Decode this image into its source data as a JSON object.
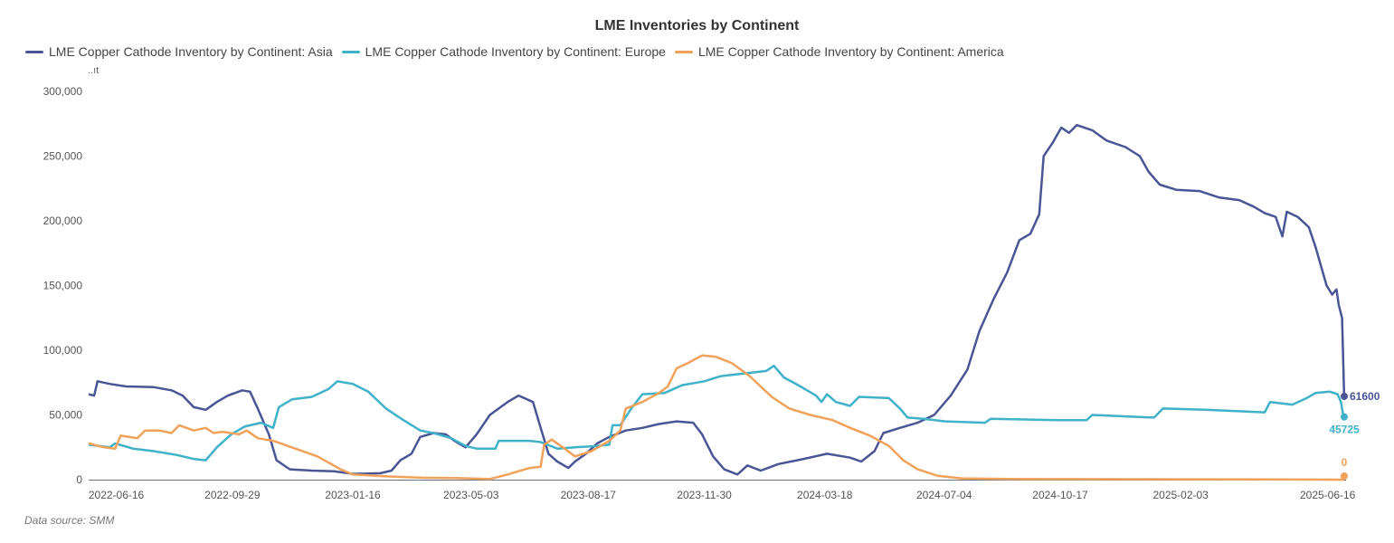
{
  "chart_data": {
    "type": "line",
    "title": "LME Inventories by Continent",
    "ylabel": "..ıt",
    "xlabel": "",
    "ylim": [
      0,
      300000
    ],
    "yticks": [
      0,
      50000,
      100000,
      150000,
      200000,
      250000,
      300000
    ],
    "ytick_labels": [
      "0",
      "50,000",
      "100,000",
      "150,000",
      "200,000",
      "250,000",
      "300,000"
    ],
    "xlim": [
      "2022-05-22",
      "2025-07-01"
    ],
    "xticks": [
      "2022-06-16",
      "2022-09-29",
      "2023-01-16",
      "2023-05-03",
      "2023-08-17",
      "2023-11-30",
      "2024-03-18",
      "2024-07-04",
      "2024-10-17",
      "2025-02-03",
      "2025-06-16"
    ],
    "grid": false,
    "legend": "top-left",
    "series": [
      {
        "name": "LME Copper Cathode Inventory by Continent: Asia",
        "color": "#4a5596",
        "end_label": "61600",
        "points": [
          [
            "2022-05-22",
            66000
          ],
          [
            "2022-05-27",
            65000
          ],
          [
            "2022-05-30",
            76000
          ],
          [
            "2022-06-10",
            74000
          ],
          [
            "2022-06-25",
            72000
          ],
          [
            "2022-07-20",
            71500
          ],
          [
            "2022-08-05",
            69000
          ],
          [
            "2022-08-15",
            65000
          ],
          [
            "2022-08-25",
            56000
          ],
          [
            "2022-09-05",
            54000
          ],
          [
            "2022-09-15",
            60000
          ],
          [
            "2022-09-25",
            65000
          ],
          [
            "2022-10-08",
            69000
          ],
          [
            "2022-10-15",
            68000
          ],
          [
            "2022-10-22",
            55000
          ],
          [
            "2022-11-01",
            35000
          ],
          [
            "2022-11-08",
            15000
          ],
          [
            "2022-11-20",
            8000
          ],
          [
            "2022-12-10",
            7000
          ],
          [
            "2022-12-30",
            6500
          ],
          [
            "2023-01-16",
            4500
          ],
          [
            "2023-02-10",
            5000
          ],
          [
            "2023-02-20",
            7000
          ],
          [
            "2023-02-28",
            15000
          ],
          [
            "2023-03-10",
            20000
          ],
          [
            "2023-03-18",
            33000
          ],
          [
            "2023-03-30",
            36000
          ],
          [
            "2023-04-10",
            35000
          ],
          [
            "2023-04-18",
            30000
          ],
          [
            "2023-04-28",
            25000
          ],
          [
            "2023-05-08",
            35000
          ],
          [
            "2023-05-20",
            50000
          ],
          [
            "2023-06-05",
            60000
          ],
          [
            "2023-06-15",
            65000
          ],
          [
            "2023-06-28",
            60000
          ],
          [
            "2023-07-05",
            40000
          ],
          [
            "2023-07-12",
            20000
          ],
          [
            "2023-07-20",
            14000
          ],
          [
            "2023-07-30",
            9000
          ],
          [
            "2023-08-05",
            14000
          ],
          [
            "2023-08-15",
            20000
          ],
          [
            "2023-08-25",
            28000
          ],
          [
            "2023-09-05",
            33000
          ],
          [
            "2023-09-20",
            38000
          ],
          [
            "2023-10-05",
            40000
          ],
          [
            "2023-10-20",
            43000
          ],
          [
            "2023-11-05",
            45000
          ],
          [
            "2023-11-20",
            44000
          ],
          [
            "2023-11-28",
            35000
          ],
          [
            "2023-12-08",
            18000
          ],
          [
            "2023-12-18",
            8000
          ],
          [
            "2023-12-30",
            4000
          ],
          [
            "2024-01-08",
            11000
          ],
          [
            "2024-01-20",
            7000
          ],
          [
            "2024-02-05",
            12000
          ],
          [
            "2024-02-28",
            16000
          ],
          [
            "2024-03-20",
            20000
          ],
          [
            "2024-04-10",
            17000
          ],
          [
            "2024-04-20",
            14000
          ],
          [
            "2024-05-02",
            22000
          ],
          [
            "2024-05-10",
            36000
          ],
          [
            "2024-05-25",
            40000
          ],
          [
            "2024-06-10",
            44000
          ],
          [
            "2024-06-25",
            50000
          ],
          [
            "2024-07-10",
            65000
          ],
          [
            "2024-07-25",
            85000
          ],
          [
            "2024-08-05",
            115000
          ],
          [
            "2024-08-18",
            140000
          ],
          [
            "2024-08-30",
            160000
          ],
          [
            "2024-09-10",
            185000
          ],
          [
            "2024-09-20",
            190000
          ],
          [
            "2024-09-28",
            205000
          ],
          [
            "2024-10-02",
            250000
          ],
          [
            "2024-10-10",
            260000
          ],
          [
            "2024-10-18",
            272000
          ],
          [
            "2024-10-25",
            268000
          ],
          [
            "2024-11-01",
            274000
          ],
          [
            "2024-11-15",
            270000
          ],
          [
            "2024-11-28",
            262000
          ],
          [
            "2024-12-15",
            257000
          ],
          [
            "2024-12-28",
            250000
          ],
          [
            "2025-01-05",
            238000
          ],
          [
            "2025-01-15",
            228000
          ],
          [
            "2025-01-30",
            224000
          ],
          [
            "2025-02-20",
            223000
          ],
          [
            "2025-03-10",
            218000
          ],
          [
            "2025-03-28",
            216000
          ],
          [
            "2025-04-10",
            211000
          ],
          [
            "2025-04-20",
            206000
          ],
          [
            "2025-04-30",
            203000
          ],
          [
            "2025-05-06",
            188000
          ],
          [
            "2025-05-10",
            207000
          ],
          [
            "2025-05-20",
            203000
          ],
          [
            "2025-05-30",
            195000
          ],
          [
            "2025-06-05",
            180000
          ],
          [
            "2025-06-10",
            165000
          ],
          [
            "2025-06-15",
            150000
          ],
          [
            "2025-06-20",
            143000
          ],
          [
            "2025-06-24",
            147000
          ],
          [
            "2025-06-26",
            135000
          ],
          [
            "2025-06-29",
            125000
          ],
          [
            "2025-07-01",
            61600
          ]
        ]
      },
      {
        "name": "LME Copper Cathode Inventory by Continent: Europe",
        "color": "#3fb1c8",
        "end_label": "45725",
        "points": [
          [
            "2022-05-22",
            27000
          ],
          [
            "2022-06-10",
            25000
          ],
          [
            "2022-06-15",
            28000
          ],
          [
            "2022-07-01",
            24000
          ],
          [
            "2022-07-20",
            22000
          ],
          [
            "2022-08-10",
            19000
          ],
          [
            "2022-08-25",
            16000
          ],
          [
            "2022-09-05",
            15000
          ],
          [
            "2022-09-15",
            25000
          ],
          [
            "2022-09-28",
            35000
          ],
          [
            "2022-10-10",
            41000
          ],
          [
            "2022-10-25",
            44000
          ],
          [
            "2022-11-05",
            40000
          ],
          [
            "2022-11-10",
            56000
          ],
          [
            "2022-11-22",
            62000
          ],
          [
            "2022-12-10",
            64000
          ],
          [
            "2022-12-25",
            70000
          ],
          [
            "2023-01-02",
            76000
          ],
          [
            "2023-01-16",
            74000
          ],
          [
            "2023-01-30",
            68000
          ],
          [
            "2023-02-15",
            55000
          ],
          [
            "2023-03-01",
            47000
          ],
          [
            "2023-03-18",
            38000
          ],
          [
            "2023-03-30",
            36000
          ],
          [
            "2023-04-15",
            32000
          ],
          [
            "2023-04-28",
            26000
          ],
          [
            "2023-05-08",
            24000
          ],
          [
            "2023-05-25",
            24000
          ],
          [
            "2023-05-28",
            30000
          ],
          [
            "2023-06-25",
            30000
          ],
          [
            "2023-07-05",
            29000
          ],
          [
            "2023-07-20",
            24000
          ],
          [
            "2023-08-05",
            25000
          ],
          [
            "2023-08-25",
            26000
          ],
          [
            "2023-09-05",
            27000
          ],
          [
            "2023-09-08",
            42000
          ],
          [
            "2023-09-15",
            42000
          ],
          [
            "2023-09-25",
            55000
          ],
          [
            "2023-10-05",
            66000
          ],
          [
            "2023-10-25",
            67000
          ],
          [
            "2023-11-10",
            73000
          ],
          [
            "2023-11-30",
            76000
          ],
          [
            "2023-12-15",
            80000
          ],
          [
            "2024-01-05",
            82000
          ],
          [
            "2024-01-25",
            84000
          ],
          [
            "2024-02-01",
            88000
          ],
          [
            "2024-02-10",
            79000
          ],
          [
            "2024-02-25",
            72000
          ],
          [
            "2024-03-10",
            65000
          ],
          [
            "2024-03-15",
            60000
          ],
          [
            "2024-03-20",
            66000
          ],
          [
            "2024-03-28",
            60000
          ],
          [
            "2024-04-10",
            57000
          ],
          [
            "2024-04-18",
            64000
          ],
          [
            "2024-05-15",
            63000
          ],
          [
            "2024-05-25",
            55000
          ],
          [
            "2024-06-01",
            48000
          ],
          [
            "2024-06-15",
            47000
          ],
          [
            "2024-07-05",
            45000
          ],
          [
            "2024-08-10",
            44000
          ],
          [
            "2024-08-15",
            47000
          ],
          [
            "2024-10-15",
            46000
          ],
          [
            "2024-11-10",
            46000
          ],
          [
            "2024-11-15",
            50000
          ],
          [
            "2025-01-10",
            48000
          ],
          [
            "2025-01-18",
            55000
          ],
          [
            "2025-02-25",
            54000
          ],
          [
            "2025-03-25",
            53000
          ],
          [
            "2025-04-20",
            52000
          ],
          [
            "2025-04-25",
            60000
          ],
          [
            "2025-05-15",
            58000
          ],
          [
            "2025-05-28",
            63000
          ],
          [
            "2025-06-05",
            67000
          ],
          [
            "2025-06-18",
            68000
          ],
          [
            "2025-06-25",
            66000
          ],
          [
            "2025-06-28",
            60000
          ],
          [
            "2025-07-01",
            45725
          ]
        ]
      },
      {
        "name": "LME Copper Cathode Inventory by Continent: America",
        "color": "#f0a15a",
        "end_label": "0",
        "points": [
          [
            "2022-05-22",
            28000
          ],
          [
            "2022-06-05",
            25000
          ],
          [
            "2022-06-15",
            24000
          ],
          [
            "2022-06-20",
            34000
          ],
          [
            "2022-07-05",
            32000
          ],
          [
            "2022-07-12",
            38000
          ],
          [
            "2022-07-25",
            38000
          ],
          [
            "2022-08-05",
            36000
          ],
          [
            "2022-08-12",
            42000
          ],
          [
            "2022-08-25",
            38000
          ],
          [
            "2022-09-05",
            40000
          ],
          [
            "2022-09-12",
            36000
          ],
          [
            "2022-09-20",
            37000
          ],
          [
            "2022-10-05",
            35000
          ],
          [
            "2022-10-12",
            38000
          ],
          [
            "2022-10-22",
            32000
          ],
          [
            "2022-11-05",
            30000
          ],
          [
            "2022-11-25",
            24000
          ],
          [
            "2022-12-15",
            18000
          ],
          [
            "2023-01-05",
            8000
          ],
          [
            "2023-01-16",
            4000
          ],
          [
            "2023-02-15",
            2500
          ],
          [
            "2023-03-20",
            1500
          ],
          [
            "2023-04-20",
            1200
          ],
          [
            "2023-05-20",
            500
          ],
          [
            "2023-06-05",
            4000
          ],
          [
            "2023-06-25",
            9000
          ],
          [
            "2023-07-05",
            10000
          ],
          [
            "2023-07-08",
            27000
          ],
          [
            "2023-07-15",
            31000
          ],
          [
            "2023-07-25",
            25000
          ],
          [
            "2023-08-05",
            18000
          ],
          [
            "2023-08-20",
            22000
          ],
          [
            "2023-09-05",
            30000
          ],
          [
            "2023-09-15",
            38000
          ],
          [
            "2023-09-20",
            55000
          ],
          [
            "2023-10-05",
            60000
          ],
          [
            "2023-10-20",
            67000
          ],
          [
            "2023-10-28",
            72000
          ],
          [
            "2023-11-05",
            86000
          ],
          [
            "2023-11-15",
            90000
          ],
          [
            "2023-11-28",
            96000
          ],
          [
            "2023-12-10",
            95000
          ],
          [
            "2023-12-25",
            90000
          ],
          [
            "2024-01-10",
            80000
          ],
          [
            "2024-01-30",
            64000
          ],
          [
            "2024-02-15",
            55000
          ],
          [
            "2024-03-05",
            50000
          ],
          [
            "2024-03-25",
            46000
          ],
          [
            "2024-04-10",
            40000
          ],
          [
            "2024-04-28",
            34000
          ],
          [
            "2024-05-15",
            26000
          ],
          [
            "2024-05-28",
            15000
          ],
          [
            "2024-06-10",
            8000
          ],
          [
            "2024-06-28",
            3000
          ],
          [
            "2024-07-20",
            1000
          ],
          [
            "2024-09-01",
            500
          ],
          [
            "2025-02-01",
            300
          ],
          [
            "2025-07-01",
            0
          ]
        ]
      }
    ]
  },
  "footer": {
    "source": "Data source:  SMM"
  }
}
